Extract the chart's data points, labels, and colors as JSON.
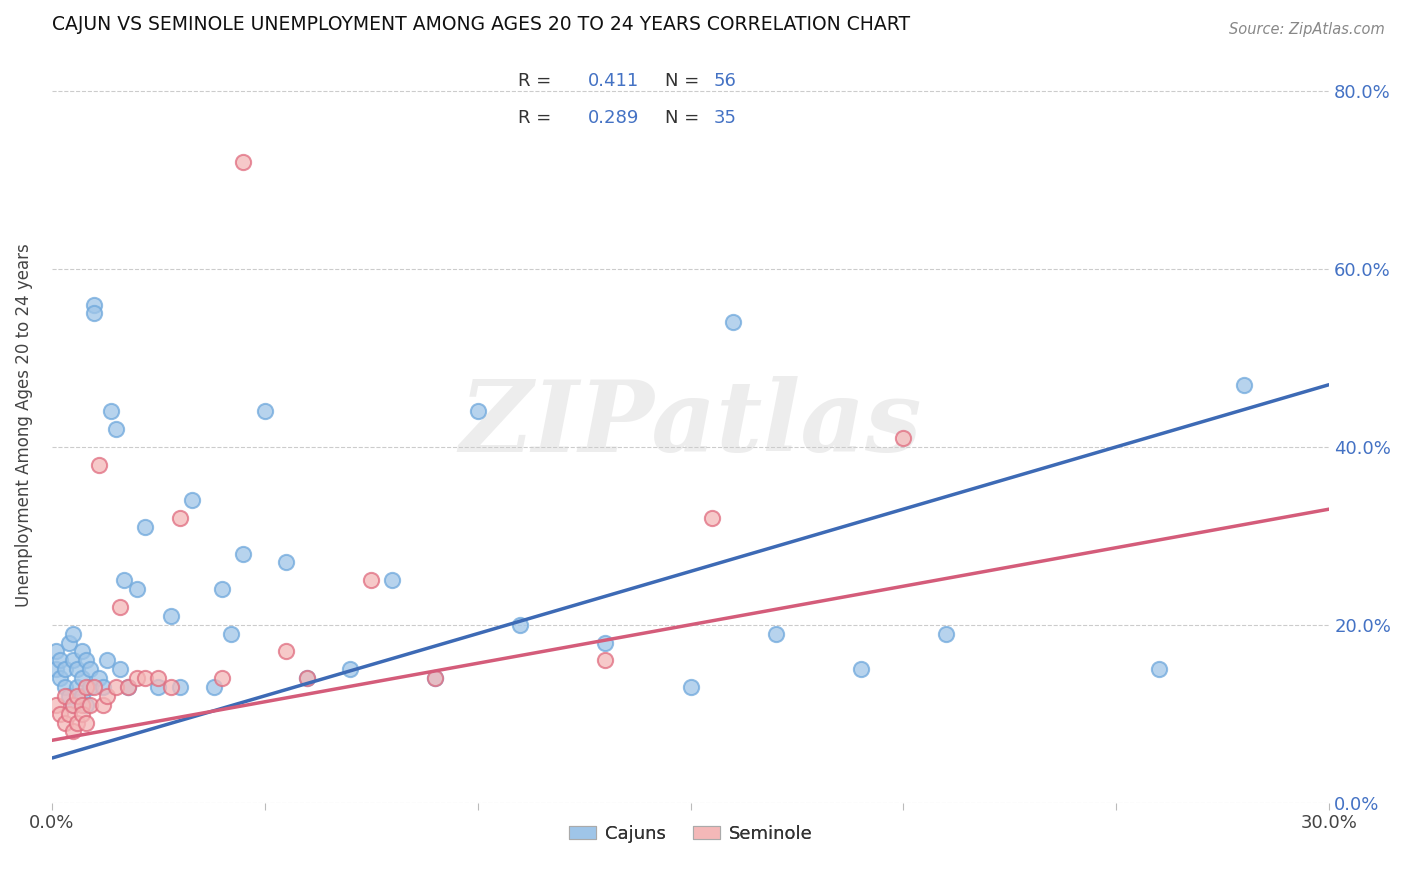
{
  "title": "CAJUN VS SEMINOLE UNEMPLOYMENT AMONG AGES 20 TO 24 YEARS CORRELATION CHART",
  "source": "Source: ZipAtlas.com",
  "ylabel": "Unemployment Among Ages 20 to 24 years",
  "xlim": [
    0.0,
    0.3
  ],
  "ylim": [
    0.0,
    0.85
  ],
  "x_tick_positions": [
    0.0,
    0.05,
    0.1,
    0.15,
    0.2,
    0.25,
    0.3
  ],
  "x_tick_labels": [
    "0.0%",
    "",
    "",
    "",
    "",
    "",
    "30.0%"
  ],
  "y_tick_positions": [
    0.0,
    0.2,
    0.4,
    0.6,
    0.8
  ],
  "y_tick_labels_right": [
    "0.0%",
    "20.0%",
    "40.0%",
    "60.0%",
    "80.0%"
  ],
  "cajun_color": "#9fc5e8",
  "cajun_edge_color": "#6fa8dc",
  "seminole_color": "#f4b8b8",
  "seminole_edge_color": "#e06c7f",
  "cajun_line_color": "#3d6ab5",
  "seminole_line_color": "#d45c7a",
  "legend_R_cajun": "0.411",
  "legend_N_cajun": "56",
  "legend_R_seminole": "0.289",
  "legend_N_seminole": "35",
  "cajun_x": [
    0.001,
    0.001,
    0.002,
    0.002,
    0.003,
    0.003,
    0.004,
    0.004,
    0.005,
    0.005,
    0.005,
    0.006,
    0.006,
    0.007,
    0.007,
    0.007,
    0.008,
    0.008,
    0.009,
    0.009,
    0.01,
    0.01,
    0.011,
    0.012,
    0.013,
    0.014,
    0.015,
    0.016,
    0.017,
    0.018,
    0.02,
    0.022,
    0.025,
    0.028,
    0.03,
    0.033,
    0.038,
    0.04,
    0.042,
    0.045,
    0.05,
    0.055,
    0.06,
    0.07,
    0.08,
    0.09,
    0.1,
    0.11,
    0.13,
    0.15,
    0.16,
    0.17,
    0.19,
    0.21,
    0.26,
    0.28
  ],
  "cajun_y": [
    0.15,
    0.17,
    0.14,
    0.16,
    0.13,
    0.15,
    0.12,
    0.18,
    0.11,
    0.16,
    0.19,
    0.13,
    0.15,
    0.12,
    0.14,
    0.17,
    0.11,
    0.16,
    0.13,
    0.15,
    0.56,
    0.55,
    0.14,
    0.13,
    0.16,
    0.44,
    0.42,
    0.15,
    0.25,
    0.13,
    0.24,
    0.31,
    0.13,
    0.21,
    0.13,
    0.34,
    0.13,
    0.24,
    0.19,
    0.28,
    0.44,
    0.27,
    0.14,
    0.15,
    0.25,
    0.14,
    0.44,
    0.2,
    0.18,
    0.13,
    0.54,
    0.19,
    0.15,
    0.19,
    0.15,
    0.47
  ],
  "seminole_x": [
    0.001,
    0.002,
    0.003,
    0.003,
    0.004,
    0.005,
    0.005,
    0.006,
    0.006,
    0.007,
    0.007,
    0.008,
    0.008,
    0.009,
    0.01,
    0.011,
    0.012,
    0.013,
    0.015,
    0.016,
    0.018,
    0.02,
    0.022,
    0.025,
    0.028,
    0.03,
    0.04,
    0.045,
    0.055,
    0.06,
    0.075,
    0.09,
    0.13,
    0.155,
    0.2
  ],
  "seminole_y": [
    0.11,
    0.1,
    0.09,
    0.12,
    0.1,
    0.08,
    0.11,
    0.09,
    0.12,
    0.11,
    0.1,
    0.13,
    0.09,
    0.11,
    0.13,
    0.38,
    0.11,
    0.12,
    0.13,
    0.22,
    0.13,
    0.14,
    0.14,
    0.14,
    0.13,
    0.32,
    0.14,
    0.72,
    0.17,
    0.14,
    0.25,
    0.14,
    0.16,
    0.32,
    0.41
  ],
  "cajun_line_x0": 0.0,
  "cajun_line_y0": 0.05,
  "cajun_line_x1": 0.3,
  "cajun_line_y1": 0.47,
  "seminole_line_x0": 0.0,
  "seminole_line_y0": 0.07,
  "seminole_line_x1": 0.3,
  "seminole_line_y1": 0.33,
  "background_color": "#ffffff",
  "grid_color": "#cccccc",
  "watermark_text": "ZIPatlas"
}
